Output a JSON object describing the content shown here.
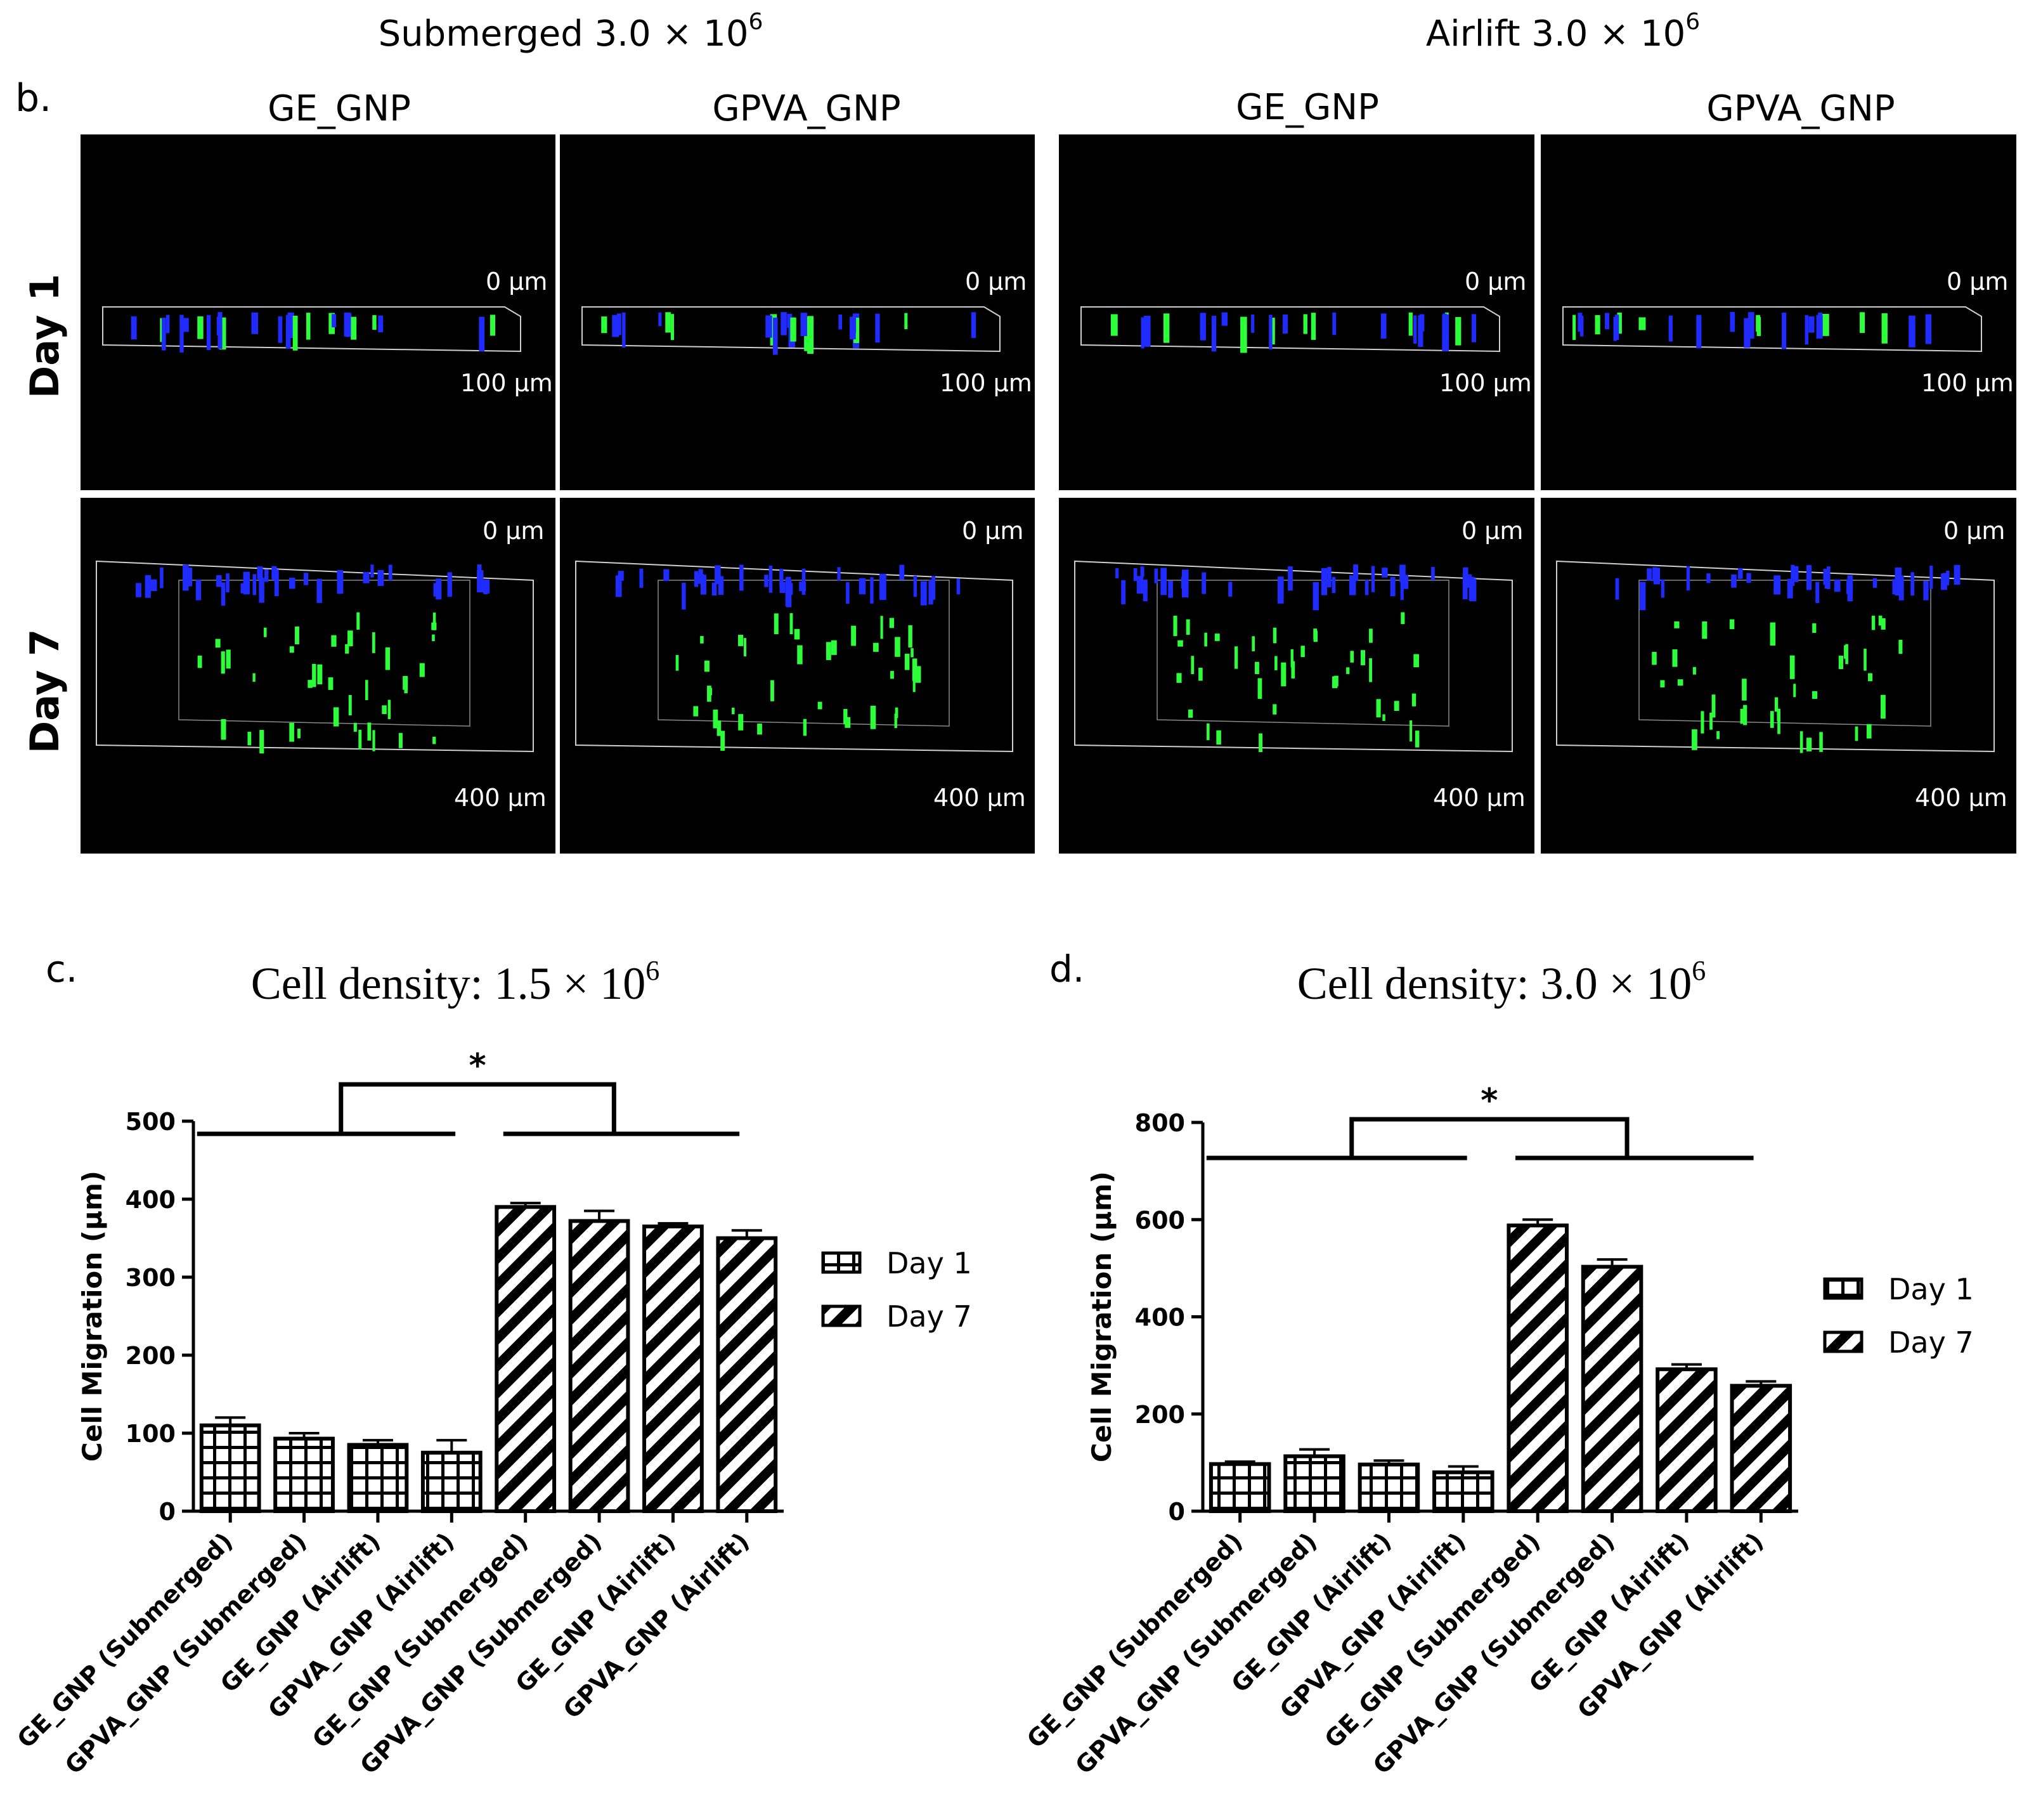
{
  "panel_b": {
    "label": "b.",
    "group_headers": [
      {
        "text": "Submerged 3.0 × 10",
        "sup": "6"
      },
      {
        "text": "Airlift 3.0 × 10",
        "sup": "6"
      }
    ],
    "column_headers": [
      "GE_GNP",
      "GPVA_GNP",
      "GE_GNP",
      "GPVA_GNP"
    ],
    "row_labels": [
      "Day 1",
      "Day 7"
    ],
    "depth_labels": {
      "top": "0 µm",
      "day1_bottom": "100 µm",
      "day7_bottom": "400 µm"
    },
    "colors": {
      "background": "#000000",
      "nuclei": "#1f2bff",
      "cells": "#2cff3a",
      "box": "#cfcfcf"
    }
  },
  "chart_data": [
    {
      "type": "bar",
      "panel_label": "c.",
      "title": "Cell density: 1.5 × 10",
      "title_sup": "6",
      "xlabel": "",
      "ylabel": "Cell Migration (µm)",
      "ylim": [
        0,
        500
      ],
      "yticks": [
        0,
        100,
        200,
        300,
        400,
        500
      ],
      "categories": [
        "GE_GNP (Submerged)",
        "GPVA_GNP (Submerged)",
        "GE_GNP (Airlift)",
        "GPVA_GNP (Airlift)",
        "GE_GNP (Submerged)",
        "GPVA_GNP (Submerged)",
        "GE_GNP (Airlift)",
        "GPVA_GNP (Airlift)"
      ],
      "values": [
        110,
        93,
        85,
        75,
        390,
        372,
        365,
        350
      ],
      "errors": [
        10,
        7,
        6,
        16,
        5,
        13,
        4,
        10
      ],
      "pattern": [
        "grid",
        "grid",
        "grid",
        "grid",
        "diag",
        "diag",
        "diag",
        "diag"
      ],
      "legend": [
        {
          "label": "Day 1",
          "pattern": "grid"
        },
        {
          "label": "Day 7",
          "pattern": "diag"
        }
      ],
      "significance": "*"
    },
    {
      "type": "bar",
      "panel_label": "d.",
      "title": "Cell density: 3.0 × 10",
      "title_sup": "6",
      "xlabel": "",
      "ylabel": "Cell Migration (µm)",
      "ylim": [
        0,
        800
      ],
      "yticks": [
        0,
        200,
        400,
        600,
        800
      ],
      "categories": [
        "GE_GNP (Submerged)",
        "GPVA_GNP (Submerged)",
        "GE_GNP (Airlift)",
        "GPVA_GNP (Airlift)",
        "GE_GNP (Submerged)",
        "GPVA_GNP (Submerged)",
        "GE_GNP (Airlift)",
        "GPVA_GNP (Airlift)"
      ],
      "values": [
        97,
        113,
        96,
        80,
        588,
        503,
        292,
        258
      ],
      "errors": [
        5,
        14,
        8,
        12,
        12,
        15,
        10,
        9
      ],
      "pattern": [
        "grid",
        "grid",
        "grid",
        "grid",
        "diag",
        "diag",
        "diag",
        "diag"
      ],
      "legend": [
        {
          "label": "Day 1",
          "pattern": "grid"
        },
        {
          "label": "Day 7",
          "pattern": "diag"
        }
      ],
      "significance": "*"
    }
  ]
}
